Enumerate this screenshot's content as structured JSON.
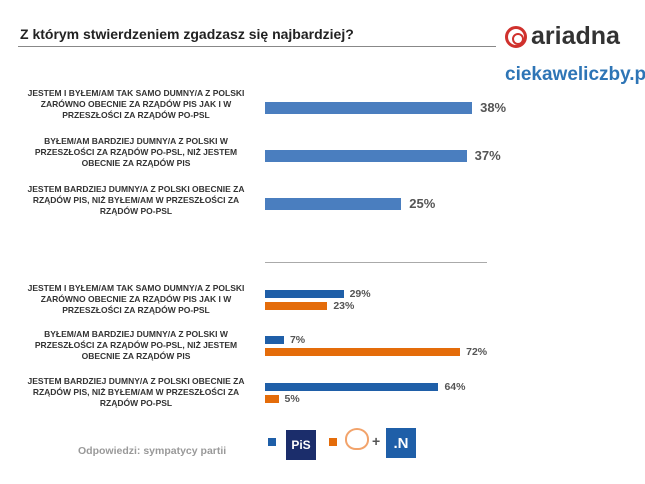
{
  "title": "Z którym stwierdzeniem zgadzasz się najbardziej?",
  "brand": "ariadna",
  "site": "ciekaweliczby.pl",
  "note": "Odpowiedzi: sympatycy partii",
  "colors": {
    "overall": "#4a7ebf",
    "pis": "#1f5fa8",
    "po_n": "#e46c0a"
  },
  "legend": [
    {
      "name": "PiS",
      "logo_text": "PiS"
    },
    {
      "name": "Platforma Obywatelska + .N",
      "logo_text": ".N",
      "plus": "+"
    }
  ],
  "chart_data": [
    {
      "type": "bar",
      "orientation": "horizontal",
      "categories": [
        "JESTEM I BYŁEM/AM TAK SAMO DUMNY/A Z POLSKI ZARÓWNO OBECNIE ZA RZĄDÓW PIS JAK I W PRZESZŁOŚCI ZA RZĄDÓW PO-PSL",
        "BYŁEM/AM BARDZIEJ DUMNY/A Z POLSKI W PRZESZŁOŚCI ZA RZĄDÓW PO-PSL, NIŻ JESTEM OBECNIE ZA RZĄDÓW PIS",
        "JESTEM BARDZIEJ DUMNY/A Z POLSKI OBECNIE ZA RZĄDÓW PIS, NIŻ BYŁEM/AM W PRZESZŁOŚCI ZA RZĄDÓW PO-PSL"
      ],
      "values": [
        38,
        37,
        25
      ],
      "labels": [
        "38%",
        "37%",
        "25%"
      ],
      "unit": "%"
    },
    {
      "type": "bar",
      "orientation": "horizontal",
      "categories": [
        "JESTEM I BYŁEM/AM TAK SAMO DUMNY/A Z POLSKI ZARÓWNO OBECNIE ZA RZĄDÓW PIS JAK I W PRZESZŁOŚCI ZA RZĄDÓW PO-PSL",
        "BYŁEM/AM BARDZIEJ DUMNY/A Z POLSKI W PRZESZŁOŚCI ZA RZĄDÓW PO-PSL, NIŻ JESTEM OBECNIE ZA RZĄDÓW PIS",
        "JESTEM BARDZIEJ DUMNY/A Z POLSKI OBECNIE ZA RZĄDÓW PIS, NIŻ BYŁEM/AM W PRZESZŁOŚCI ZA RZĄDÓW PO-PSL"
      ],
      "series": [
        {
          "name": "PiS",
          "values": [
            29,
            7,
            64
          ],
          "labels": [
            "29%",
            "7%",
            "64%"
          ]
        },
        {
          "name": "PO + .N",
          "values": [
            23,
            72,
            5
          ],
          "labels": [
            "23%",
            "72%",
            "5%"
          ]
        }
      ],
      "unit": "%"
    }
  ]
}
